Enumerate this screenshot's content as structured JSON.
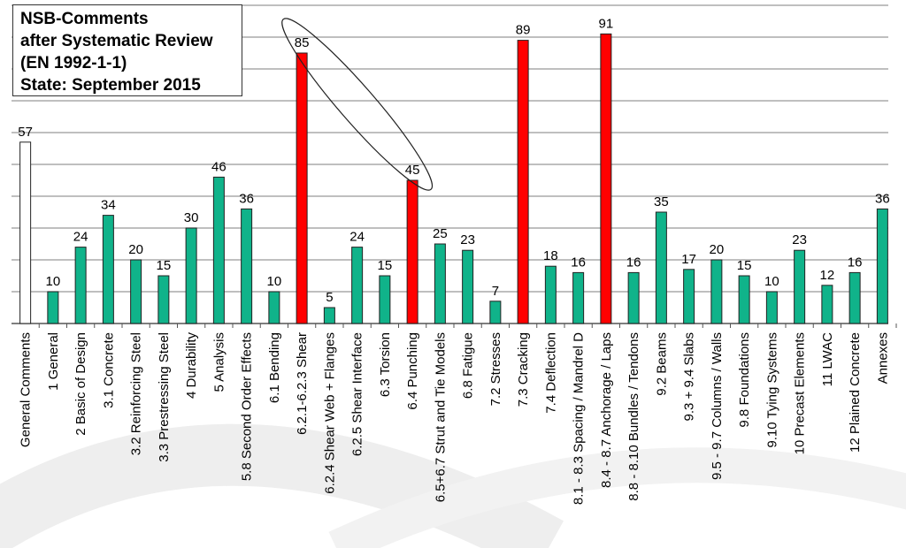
{
  "chart_data": {
    "type": "bar",
    "title_lines": [
      "NSB-Comments",
      "after Systematic Review",
      "(EN 1992-1-1)",
      "State: September 2015"
    ],
    "categories": [
      "General Comments",
      "1 General",
      "2 Basic of Design",
      "3.1 Concrete",
      "3.2 Reinforcing Steel",
      "3.3 Prestressing Steel",
      "4 Durability",
      "5 Analysis",
      "5.8 Second Order Effects",
      "6.1 Bending",
      "6.2.1-6.2.3 Shear",
      "6.2.4 Shear Web + Flanges",
      "6.2.5 Shear Interface",
      "6.3 Torsion",
      "6.4 Punching",
      "6.5+6.7 Strut and Tie Models",
      "6.8 Fatigue",
      "7.2 Stresses",
      "7.3 Cracking",
      "7.4 Deflection",
      "8.1 - 8.3 Spacing / Mandrel D",
      "8.4 - 8.7 Anchorage / Laps",
      "8.8 - 8.10 Bundles / Tendons",
      "9.2 Beams",
      "9.3 + 9.4 Slabs",
      "9.5 - 9.7 Columns / Walls",
      "9.8 Foundations",
      "9.10 Tying Systems",
      "10 Precast Elements",
      "11 LWAC",
      "12 Plained Concrete",
      "Annexes"
    ],
    "values": [
      57,
      10,
      24,
      34,
      20,
      15,
      30,
      46,
      36,
      10,
      85,
      5,
      24,
      15,
      45,
      25,
      23,
      7,
      89,
      18,
      16,
      91,
      16,
      35,
      17,
      20,
      15,
      10,
      23,
      12,
      16,
      36
    ],
    "highlighted": [
      10,
      14,
      18,
      21
    ],
    "outlined": [
      0
    ],
    "ylim": [
      0,
      100
    ],
    "grid": true,
    "colors": {
      "bar": "#10b38a",
      "highlight": "#ff0000",
      "outlined_fill": "#ffffff",
      "grid": "#999999"
    }
  }
}
